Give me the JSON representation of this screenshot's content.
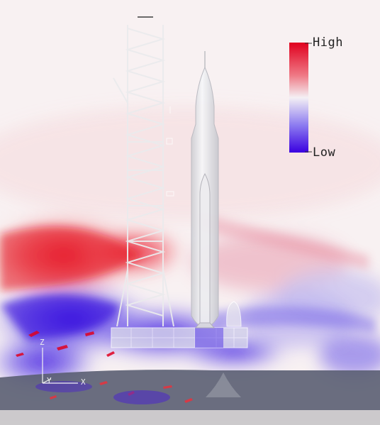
{
  "legend": {
    "high_label": "High",
    "low_label": "Low",
    "colors": {
      "high": "#e0001e",
      "mid": "#f4f0f4",
      "low": "#3a00e0"
    }
  },
  "axes_indicator": {
    "z": "Z",
    "y": "Y",
    "x": "X"
  }
}
